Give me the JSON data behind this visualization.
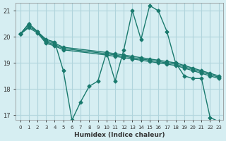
{
  "xlabel": "Humidex (Indice chaleur)",
  "ylabel": "",
  "bg_color": "#d6eef2",
  "grid_color": "#b0d4dc",
  "line_color": "#1a7a6e",
  "xlim": [
    -0.5,
    23.5
  ],
  "ylim": [
    16.8,
    21.3
  ],
  "yticks": [
    17,
    18,
    19,
    20,
    21
  ],
  "xticks": [
    0,
    1,
    2,
    3,
    4,
    5,
    6,
    7,
    8,
    9,
    10,
    11,
    12,
    13,
    14,
    15,
    16,
    17,
    18,
    19,
    20,
    21,
    22,
    23
  ],
  "lines": [
    {
      "x": [
        0,
        1,
        2,
        3,
        4,
        5,
        6,
        7,
        8,
        9,
        10,
        11,
        12,
        13,
        14,
        15,
        16,
        17,
        18,
        19,
        20,
        21,
        22,
        23
      ],
      "y": [
        20.1,
        20.5,
        20.2,
        19.9,
        19.8,
        18.7,
        16.8,
        17.5,
        18.1,
        18.3,
        19.4,
        18.3,
        19.5,
        21.0,
        19.9,
        21.2,
        21.0,
        20.2,
        19.0,
        18.5,
        18.4,
        18.4,
        16.9,
        16.75
      ]
    },
    {
      "x": [
        0,
        1,
        2,
        3,
        4,
        5,
        10,
        11,
        12,
        13,
        14,
        15,
        16,
        17,
        18,
        19,
        20,
        21,
        22,
        23
      ],
      "y": [
        20.1,
        20.5,
        20.2,
        19.85,
        19.75,
        19.6,
        19.4,
        19.35,
        19.3,
        19.25,
        19.2,
        19.15,
        19.1,
        19.05,
        19.0,
        18.9,
        18.8,
        18.7,
        18.6,
        18.5
      ]
    },
    {
      "x": [
        0,
        1,
        2,
        3,
        4,
        5,
        10,
        11,
        12,
        13,
        14,
        15,
        16,
        17,
        18,
        19,
        20,
        21,
        22,
        23
      ],
      "y": [
        20.1,
        20.4,
        20.2,
        19.8,
        19.7,
        19.55,
        19.35,
        19.3,
        19.25,
        19.2,
        19.15,
        19.1,
        19.05,
        19.0,
        18.95,
        18.85,
        18.75,
        18.65,
        18.55,
        18.45
      ]
    },
    {
      "x": [
        0,
        1,
        2,
        3,
        4,
        5,
        10,
        11,
        12,
        13,
        14,
        15,
        16,
        17,
        18,
        19,
        20,
        21,
        22,
        23
      ],
      "y": [
        20.1,
        20.35,
        20.15,
        19.75,
        19.65,
        19.5,
        19.3,
        19.25,
        19.2,
        19.15,
        19.1,
        19.05,
        19.0,
        18.95,
        18.9,
        18.8,
        18.7,
        18.6,
        18.5,
        18.4
      ]
    }
  ]
}
